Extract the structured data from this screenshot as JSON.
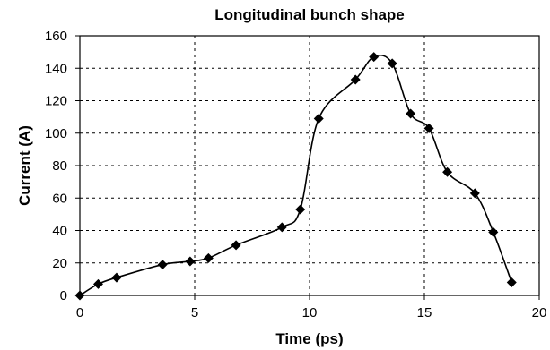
{
  "chart_data": {
    "type": "line",
    "title": "Longitudinal bunch shape",
    "xlabel": "Time (ps)",
    "ylabel": "Current (A)",
    "xlim": [
      0,
      20
    ],
    "ylim": [
      0,
      160
    ],
    "x_ticks": [
      "0",
      "5",
      "10",
      "15",
      "20"
    ],
    "y_ticks": [
      "0",
      "20",
      "40",
      "60",
      "80",
      "100",
      "120",
      "140",
      "160"
    ],
    "grid": "dashed, both axes",
    "legend": "none",
    "marker": "diamond",
    "line_color": "#000000",
    "series": [
      {
        "x": [
          0.0,
          0.8,
          1.6,
          3.6,
          4.8,
          5.6,
          6.8,
          8.8,
          9.6,
          10.4,
          12.0,
          12.8,
          13.6,
          14.4,
          15.2,
          16.0,
          17.2,
          18.0,
          18.8
        ],
        "y": [
          0,
          7,
          11,
          19,
          21,
          23,
          31,
          42,
          53,
          109,
          133,
          147,
          143,
          112,
          103,
          76,
          63,
          39,
          8
        ]
      }
    ]
  }
}
